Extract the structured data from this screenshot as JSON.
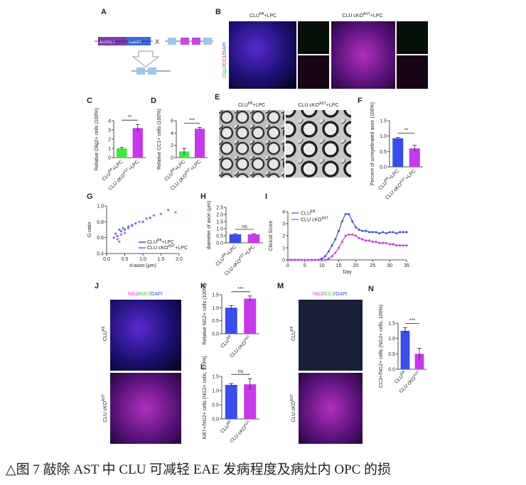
{
  "figure": {
    "panel_a": {
      "label": "A",
      "texts": [
        "ALDH1L1",
        "CreERT",
        "X"
      ]
    },
    "panel_b": {
      "label": "B",
      "groups": [
        {
          "base": "CLU",
          "sup": "fl/fl",
          "rest": "+LPC"
        },
        {
          "base": "CLU cKO",
          "sup": "AST",
          "rest": "+LPC"
        }
      ],
      "stain": [
        "Olig2",
        "/",
        "CC1",
        "/",
        "DAPI"
      ]
    },
    "panel_e": {
      "label": "E",
      "groups": [
        {
          "base": "CLU",
          "sup": "fl/fl",
          "rest": "+LPC"
        },
        {
          "base": "CLU cKO",
          "sup": "AST",
          "rest": "+LPC"
        }
      ]
    },
    "panel_j": {
      "label": "J",
      "stain": [
        "NG2",
        "/",
        "Ki67",
        "/",
        "DAPI"
      ],
      "rows": [
        {
          "base": "CLU",
          "sup": "fl/fl"
        },
        {
          "base": "CLU cKO",
          "sup": "AST"
        }
      ]
    },
    "panel_m": {
      "label": "M",
      "stain": [
        "NG2",
        "/",
        "CC3",
        "/",
        "DAPI"
      ],
      "rows": [
        {
          "base": "CLU",
          "sup": "fl/fl"
        },
        {
          "base": "CLU cKO",
          "sup": "AST"
        }
      ]
    }
  },
  "chart_data": [
    {
      "type": "bar",
      "label": "C",
      "ylabel": "Relative Olig2+ cells (100%)",
      "categories": [
        {
          "base": "CLU",
          "sup": "fl/fl",
          "rest": "+LPC"
        },
        {
          "base": "CLU cKO",
          "sup": "AST",
          "rest": "+LPC"
        }
      ],
      "values": [
        1.0,
        3.2
      ],
      "errors": [
        0.1,
        0.4
      ],
      "colors": [
        "#3ee83e",
        "#c43ae8"
      ],
      "ylim": [
        0,
        4
      ],
      "yticks": [
        0,
        1,
        2,
        3,
        4
      ],
      "sig": "**"
    },
    {
      "type": "bar",
      "label": "D",
      "ylabel": "Relative CC1+ cells (100%)",
      "categories": [
        {
          "base": "CLU",
          "sup": "fl/fl",
          "rest": "+LPC"
        },
        {
          "base": "CLU cKO",
          "sup": "AST",
          "rest": "+LPC"
        }
      ],
      "values": [
        1.0,
        4.7
      ],
      "errors": [
        0.5,
        0.2
      ],
      "colors": [
        "#3ee83e",
        "#c43ae8"
      ],
      "ylim": [
        0,
        6
      ],
      "yticks": [
        0,
        2,
        4,
        6
      ],
      "sig": "***"
    },
    {
      "type": "bar",
      "label": "F",
      "ylabel": "Percent of unmyelinated axon (100%)",
      "categories": [
        {
          "base": "CLU",
          "sup": "fl/fl",
          "rest": "+LPC"
        },
        {
          "base": "CLU cKO",
          "sup": "AST",
          "rest": "+LPC"
        }
      ],
      "values": [
        0.93,
        0.6
      ],
      "errors": [
        0.03,
        0.1
      ],
      "colors": [
        "#3a4de8",
        "#c43ae8"
      ],
      "ylim": [
        0,
        1.5
      ],
      "yticks": [
        {
          "value": 0,
          "label": "0.0"
        },
        {
          "value": 0.5,
          "label": "0.5"
        },
        {
          "value": 1,
          "label": "1.0"
        },
        {
          "value": 1.5,
          "label": "1.5"
        }
      ],
      "sig": "**"
    },
    {
      "type": "scatter",
      "label": "G",
      "xlabel": "d-axon (μm)",
      "ylabel": "G-ratio",
      "series": [
        {
          "name": {
            "base": "CLU",
            "sup": "fl/fl",
            "rest": "+LPC"
          },
          "color": "#3a4de8",
          "x": [
            0.2,
            0.25,
            0.3,
            0.35,
            0.4,
            0.45,
            0.5,
            0.6,
            0.7,
            0.8,
            1.0,
            1.2
          ],
          "values": [
            0.6,
            0.65,
            0.62,
            0.7,
            0.68,
            0.72,
            0.7,
            0.74,
            0.75,
            0.78,
            0.8,
            0.85
          ]
        },
        {
          "name": {
            "base": "CLU cKO",
            "sup": "AST",
            "rest": "+LPC"
          },
          "color": "#c43ae8",
          "x": [
            0.3,
            0.4,
            0.5,
            0.6,
            0.7,
            0.9,
            1.1,
            1.3,
            1.5,
            1.7,
            1.9,
            0.35
          ],
          "values": [
            0.58,
            0.64,
            0.66,
            0.72,
            0.76,
            0.8,
            0.84,
            0.88,
            0.9,
            0.95,
            0.92,
            0.55
          ]
        }
      ],
      "xlim": [
        0,
        2
      ],
      "xticks": [
        {
          "value": 0,
          "label": "0.0"
        },
        {
          "value": 0.5,
          "label": "0.5"
        },
        {
          "value": 1,
          "label": "1.0"
        },
        {
          "value": 1.5,
          "label": "1.5"
        },
        {
          "value": 2,
          "label": "2.0"
        }
      ],
      "ylim": [
        0.4,
        1.0
      ],
      "yticks": [
        0.4,
        0.6,
        0.8,
        {
          "value": 1,
          "label": "1.0"
        }
      ]
    },
    {
      "type": "bar",
      "label": "H",
      "ylabel": "diameter of axon (μm)",
      "categories": [
        {
          "base": "CLU",
          "sup": "fl/fl",
          "rest": "+LPC"
        },
        {
          "base": "CLU cKO",
          "sup": "AST",
          "rest": "+LPC"
        }
      ],
      "values": [
        0.6,
        0.6
      ],
      "errors": [
        0.05,
        0.05
      ],
      "colors": [
        "#3a4de8",
        "#c43ae8"
      ],
      "ylim": [
        0,
        2.5
      ],
      "yticks": [
        {
          "value": 0,
          "label": "0.0"
        },
        0.5,
        {
          "value": 1,
          "label": "1.0"
        },
        1.5,
        {
          "value": 2,
          "label": "2.0"
        },
        2.5
      ],
      "sig": "ns"
    },
    {
      "type": "line",
      "label": "I",
      "xlabel": "Day",
      "ylabel": "Clinical Score",
      "x": [
        0,
        1,
        2,
        3,
        4,
        5,
        6,
        7,
        8,
        9,
        10,
        11,
        12,
        13,
        14,
        15,
        16,
        17,
        18,
        19,
        20,
        21,
        22,
        23,
        24,
        25,
        26,
        27,
        28,
        29,
        30,
        31,
        32,
        33,
        34,
        35
      ],
      "series": [
        {
          "name": {
            "base": "CLU",
            "sup": "fl/fl"
          },
          "color": "#3a4de8",
          "values": [
            0,
            0,
            0,
            0,
            0,
            0,
            0,
            0,
            0,
            0,
            0.1,
            0.3,
            0.7,
            1.2,
            1.7,
            2.4,
            3.2,
            3.8,
            3.8,
            3.2,
            2.7,
            2.5,
            2.4,
            2.4,
            2.3,
            2.3,
            2.3,
            2.2,
            2.3,
            2.2,
            2.3,
            2.3,
            2.2,
            2.3,
            2.3,
            2.3
          ]
        },
        {
          "name": {
            "base": "CLU cKO",
            "sup": "AST"
          },
          "color": "#c43ae8",
          "values": [
            0,
            0,
            0,
            0,
            0,
            0,
            0,
            0,
            0,
            0,
            0,
            0,
            0.1,
            0.3,
            0.6,
            1.0,
            1.5,
            2.0,
            2.1,
            2.1,
            2.0,
            1.8,
            1.7,
            1.6,
            1.6,
            1.5,
            1.5,
            1.4,
            1.4,
            1.4,
            1.3,
            1.3,
            1.2,
            1.2,
            1.2,
            1.2
          ]
        }
      ],
      "xlim": [
        0,
        35
      ],
      "xticks": [
        0,
        5,
        10,
        15,
        20,
        25,
        30,
        35
      ],
      "ylim": [
        0,
        4
      ],
      "yticks": [
        0,
        1,
        2,
        3,
        4
      ]
    },
    {
      "type": "bar",
      "label": "K",
      "ylabel": "Relative NG2+ cells (100%)",
      "categories": [
        {
          "base": "CLU",
          "sup": "fl/fl"
        },
        {
          "base": "CLU cKO",
          "sup": "AST"
        }
      ],
      "values": [
        1.0,
        1.35
      ],
      "errors": [
        0.08,
        0.1
      ],
      "colors": [
        "#3a4de8",
        "#c43ae8"
      ],
      "ylim": [
        0,
        1.5
      ],
      "yticks": [
        {
          "value": 0,
          "label": "0.0"
        },
        0.5,
        {
          "value": 1,
          "label": "1.0"
        },
        1.5
      ],
      "sig": "***"
    },
    {
      "type": "bar",
      "label": "L",
      "ylabel": "Ki67+/NG2+ cells (NG2+ cells, 100%)",
      "categories": [
        {
          "base": "CLU",
          "sup": "fl/fl"
        },
        {
          "base": "CLU cKO",
          "sup": "AST"
        }
      ],
      "values": [
        1.2,
        1.22
      ],
      "errors": [
        0.05,
        0.2
      ],
      "colors": [
        "#3a4de8",
        "#c43ae8"
      ],
      "ylim": [
        0,
        1.5
      ],
      "yticks": [
        {
          "value": 0,
          "label": "0.0"
        },
        0.5,
        {
          "value": 1,
          "label": "1.0"
        },
        1.5
      ],
      "sig": "ns"
    },
    {
      "type": "bar",
      "label": "N",
      "ylabel": "CC3+/NG2+ cells (NG2+ cells, 100%)",
      "categories": [
        {
          "base": "CLU",
          "sup": "fl/fl"
        },
        {
          "base": "CLU cKO",
          "sup": "AST"
        }
      ],
      "values": [
        1.25,
        0.5
      ],
      "errors": [
        0.1,
        0.18
      ],
      "colors": [
        "#3a4de8",
        "#c43ae8"
      ],
      "ylim": [
        0,
        1.5
      ],
      "yticks": [
        {
          "value": 0,
          "label": "0.0"
        },
        0.5,
        {
          "value": 1,
          "label": "1.0"
        },
        1.5
      ],
      "sig": "***"
    }
  ],
  "caption": "△图 7  敲除 AST 中 CLU 可减轻 EAE 发病程度及病灶内 OPC 的损"
}
